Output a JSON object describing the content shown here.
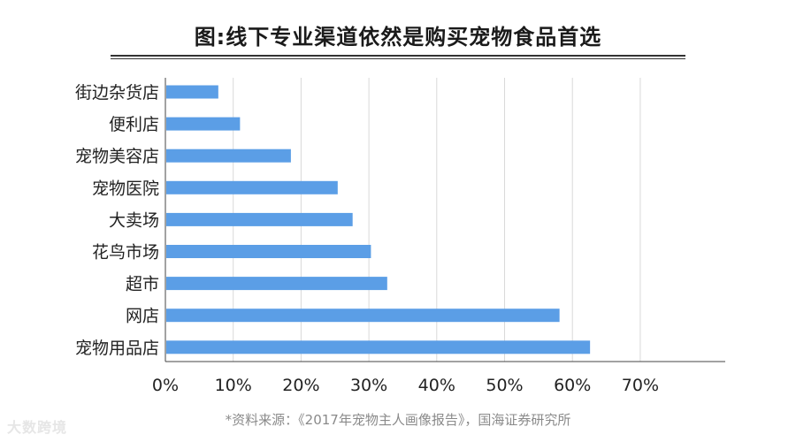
{
  "title": "图:线下专业渠道依然是购买宠物食品首选",
  "source_note": "*资料来源：《2017年宠物主人画像报告》，国海证券研究所",
  "watermark": "大数跨境",
  "colors": {
    "bar": "#5b9ee6",
    "grid": "#d9d9d9",
    "axis": "#444444",
    "text": "#222222"
  },
  "chart_data": {
    "type": "bar",
    "orientation": "horizontal",
    "title": "图:线下专业渠道依然是购买宠物食品首选",
    "categories": [
      "街边杂货店",
      "便利店",
      "宠物美容店",
      "宠物医院",
      "大卖场",
      "花鸟市场",
      "超市",
      "网店",
      "宠物用品店"
    ],
    "values": [
      7.8,
      11.0,
      18.5,
      25.4,
      27.6,
      30.3,
      32.7,
      58.1,
      62.6
    ],
    "xlim": [
      0,
      83
    ],
    "xticks": [
      0,
      10,
      20,
      30,
      40,
      50,
      60,
      70
    ],
    "tick_labels": [
      "0%",
      "10%",
      "20%",
      "30%",
      "40%",
      "50%",
      "60%",
      "70%"
    ],
    "value_unit": "%",
    "grid": true
  }
}
